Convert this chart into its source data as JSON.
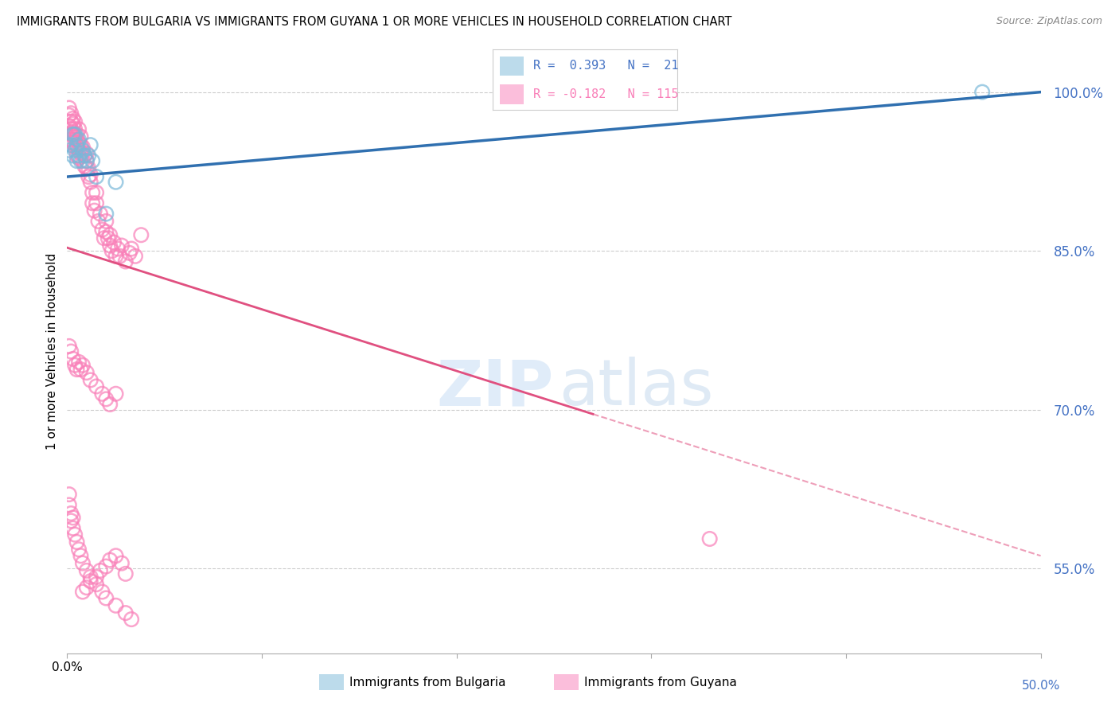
{
  "title": "IMMIGRANTS FROM BULGARIA VS IMMIGRANTS FROM GUYANA 1 OR MORE VEHICLES IN HOUSEHOLD CORRELATION CHART",
  "source": "Source: ZipAtlas.com",
  "ylabel": "1 or more Vehicles in Household",
  "y_tick_labels": [
    "100.0%",
    "85.0%",
    "70.0%",
    "55.0%"
  ],
  "y_tick_values": [
    1.0,
    0.85,
    0.7,
    0.55
  ],
  "x_min": 0.0,
  "x_max": 0.5,
  "y_min": 0.47,
  "y_max": 1.04,
  "legend_bulgaria_R": "0.393",
  "legend_bulgaria_N": "21",
  "legend_guyana_R": "-0.182",
  "legend_guyana_N": "115",
  "bulgaria_color": "#7ab8d9",
  "guyana_color": "#f97fb8",
  "trendline_bulgaria_color": "#3070b0",
  "trendline_guyana_color": "#e05080",
  "background_color": "#ffffff",
  "grid_color": "#cccccc",
  "axis_label_color": "#4472c4",
  "bulgaria_x": [
    0.001,
    0.002,
    0.003,
    0.003,
    0.004,
    0.004,
    0.005,
    0.005,
    0.006,
    0.006,
    0.007,
    0.008,
    0.009,
    0.01,
    0.011,
    0.012,
    0.013,
    0.015,
    0.02,
    0.025,
    0.47
  ],
  "bulgaria_y": [
    0.945,
    0.95,
    0.94,
    0.96,
    0.945,
    0.96,
    0.935,
    0.95,
    0.94,
    0.955,
    0.935,
    0.945,
    0.94,
    0.935,
    0.94,
    0.95,
    0.935,
    0.92,
    0.885,
    0.915,
    1.0
  ],
  "guyana_x": [
    0.001,
    0.001,
    0.001,
    0.002,
    0.002,
    0.002,
    0.002,
    0.002,
    0.003,
    0.003,
    0.003,
    0.003,
    0.003,
    0.004,
    0.004,
    0.004,
    0.004,
    0.004,
    0.005,
    0.005,
    0.005,
    0.005,
    0.006,
    0.006,
    0.006,
    0.006,
    0.007,
    0.007,
    0.007,
    0.008,
    0.008,
    0.008,
    0.009,
    0.009,
    0.01,
    0.01,
    0.01,
    0.011,
    0.011,
    0.012,
    0.012,
    0.013,
    0.013,
    0.014,
    0.015,
    0.015,
    0.016,
    0.017,
    0.018,
    0.019,
    0.02,
    0.02,
    0.021,
    0.022,
    0.022,
    0.023,
    0.024,
    0.025,
    0.026,
    0.027,
    0.028,
    0.03,
    0.032,
    0.033,
    0.035,
    0.038,
    0.001,
    0.002,
    0.003,
    0.004,
    0.005,
    0.006,
    0.007,
    0.008,
    0.01,
    0.012,
    0.015,
    0.018,
    0.02,
    0.022,
    0.025,
    0.001,
    0.001,
    0.002,
    0.002,
    0.003,
    0.003,
    0.004,
    0.005,
    0.006,
    0.007,
    0.008,
    0.01,
    0.012,
    0.015,
    0.018,
    0.02,
    0.025,
    0.03,
    0.033,
    0.03,
    0.028,
    0.025,
    0.022,
    0.02,
    0.017,
    0.015,
    0.012,
    0.01,
    0.008,
    0.33
  ],
  "guyana_y": [
    0.968,
    0.978,
    0.985,
    0.96,
    0.972,
    0.98,
    0.955,
    0.965,
    0.962,
    0.97,
    0.952,
    0.96,
    0.975,
    0.955,
    0.965,
    0.958,
    0.948,
    0.972,
    0.96,
    0.955,
    0.948,
    0.94,
    0.952,
    0.945,
    0.938,
    0.965,
    0.942,
    0.95,
    0.958,
    0.942,
    0.935,
    0.948,
    0.93,
    0.94,
    0.928,
    0.935,
    0.942,
    0.92,
    0.928,
    0.915,
    0.922,
    0.895,
    0.905,
    0.888,
    0.895,
    0.905,
    0.878,
    0.885,
    0.87,
    0.862,
    0.878,
    0.868,
    0.862,
    0.855,
    0.865,
    0.85,
    0.858,
    0.845,
    0.852,
    0.845,
    0.855,
    0.84,
    0.848,
    0.852,
    0.845,
    0.865,
    0.76,
    0.755,
    0.748,
    0.742,
    0.738,
    0.745,
    0.738,
    0.742,
    0.735,
    0.728,
    0.722,
    0.715,
    0.71,
    0.705,
    0.715,
    0.62,
    0.61,
    0.602,
    0.595,
    0.588,
    0.598,
    0.582,
    0.575,
    0.568,
    0.562,
    0.555,
    0.548,
    0.542,
    0.535,
    0.528,
    0.522,
    0.515,
    0.508,
    0.502,
    0.545,
    0.555,
    0.562,
    0.558,
    0.552,
    0.548,
    0.542,
    0.538,
    0.532,
    0.528,
    0.578
  ]
}
